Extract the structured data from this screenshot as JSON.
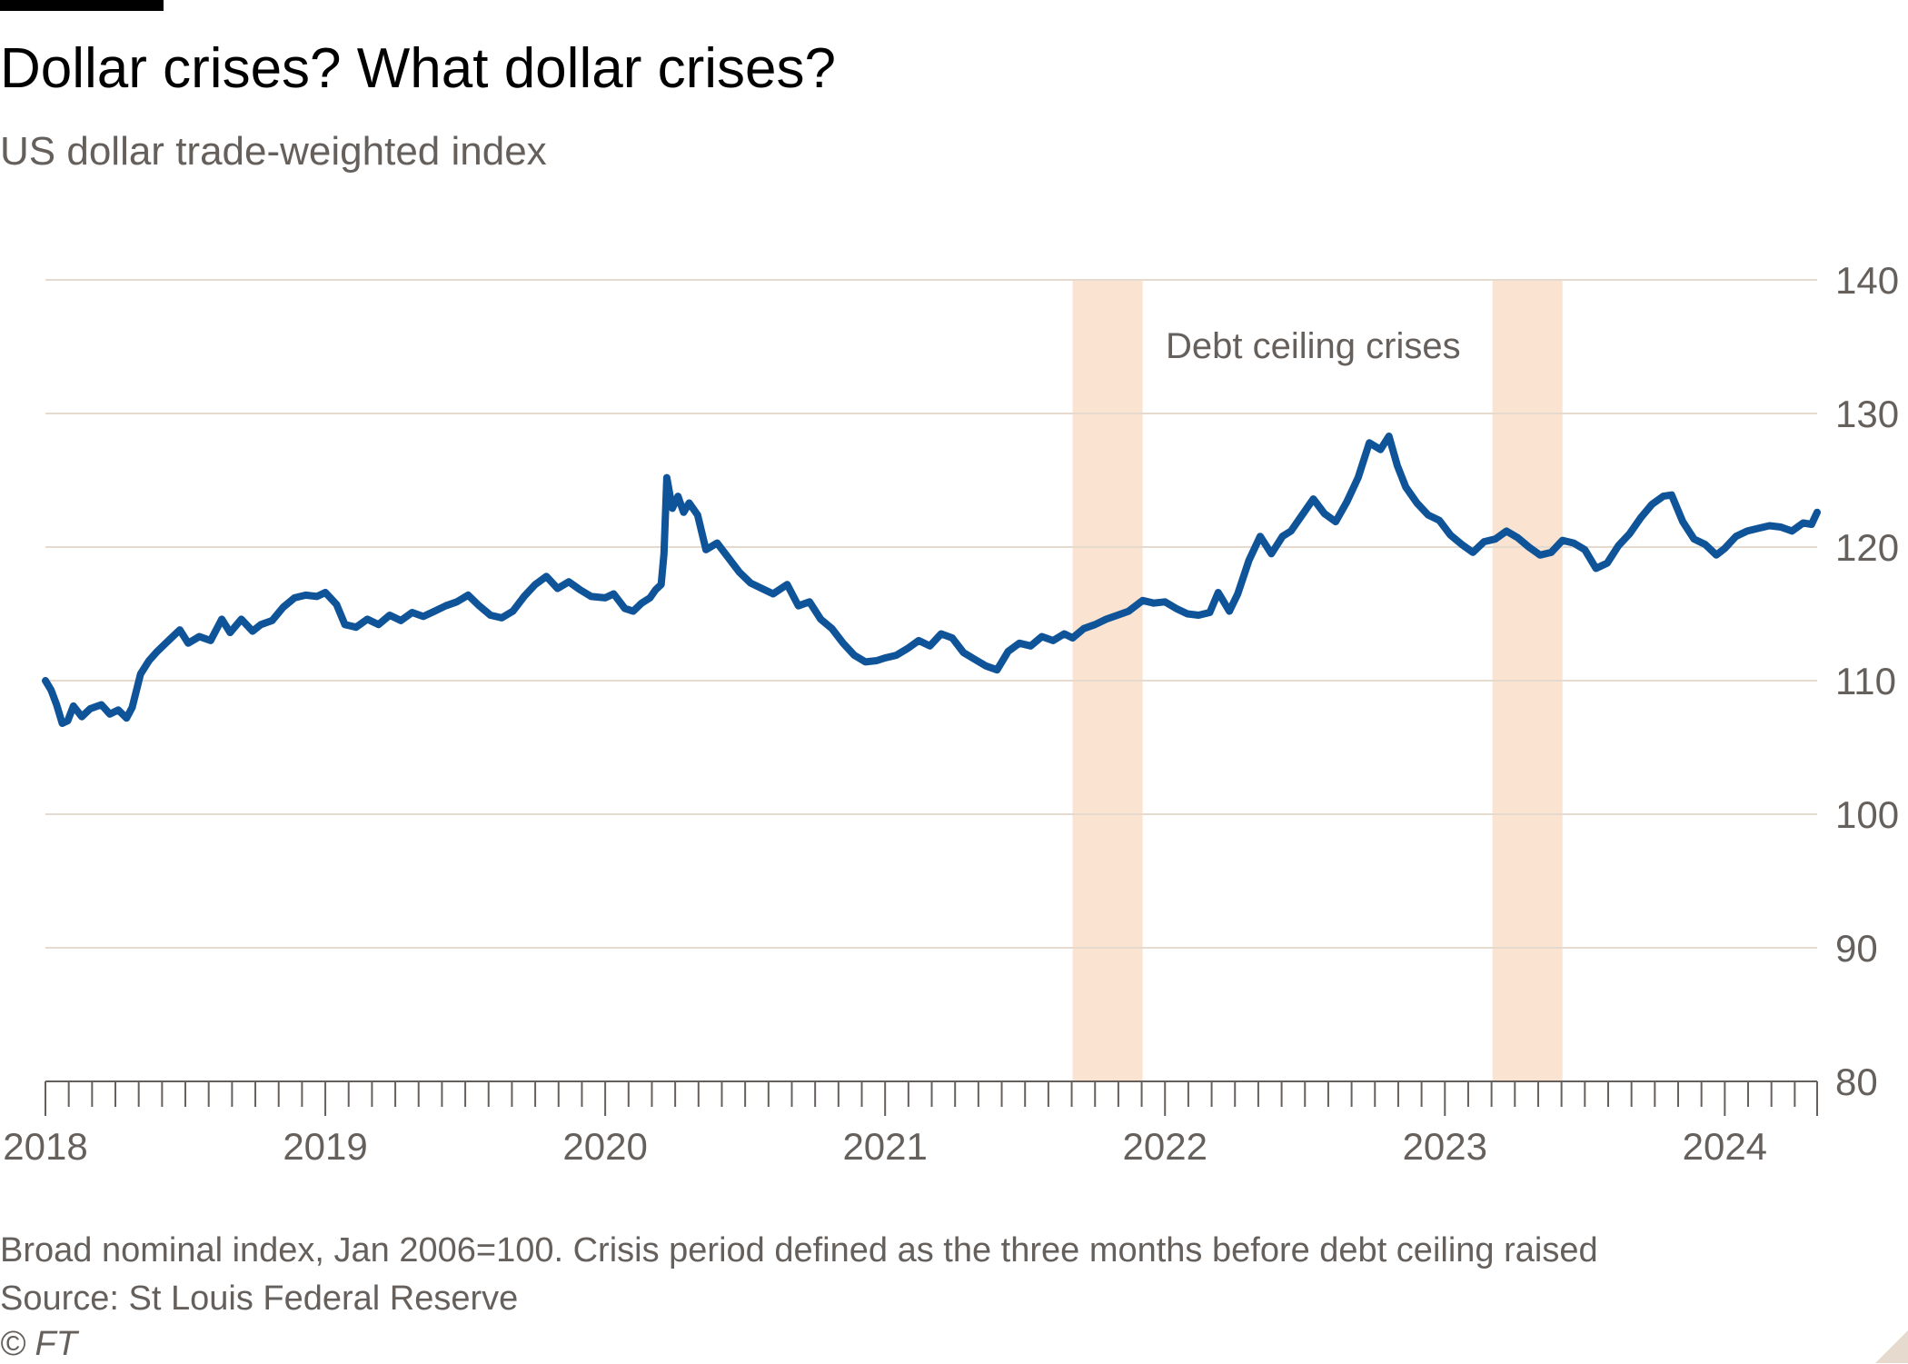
{
  "header": {
    "title": "Dollar crises? What dollar crises?",
    "subtitle": "US dollar trade-weighted index"
  },
  "footer": {
    "note": "Broad nominal index, Jan 2006=100. Crisis period defined as the three months before debt ceiling raised",
    "source": "Source: St Louis Federal Reserve",
    "copyright": "© FT"
  },
  "colors": {
    "line": "#0f5499",
    "shade": "#fbe3d1",
    "grid": "#e6d9ce",
    "text": "#66605c"
  },
  "chart_data": {
    "type": "line",
    "title": "Dollar crises? What dollar crises?",
    "subtitle": "US dollar trade-weighted index",
    "xlim": [
      2018.0,
      2024.33
    ],
    "ylim": [
      80,
      140
    ],
    "yticks": [
      80,
      90,
      100,
      110,
      120,
      130,
      140
    ],
    "xticks": [
      "2018",
      "2019",
      "2020",
      "2021",
      "2022",
      "2023",
      "2024"
    ],
    "y_axis_side": "right",
    "grid": true,
    "annotation": "Debt ceiling crises",
    "shaded_periods": [
      [
        2021.67,
        2021.92
      ],
      [
        2023.17,
        2023.42
      ]
    ],
    "series": [
      {
        "values": [
          [
            2018.0,
            110.0
          ],
          [
            2018.02,
            109.3
          ],
          [
            2018.04,
            108.2
          ],
          [
            2018.06,
            106.8
          ],
          [
            2018.08,
            107.0
          ],
          [
            2018.1,
            108.1
          ],
          [
            2018.13,
            107.3
          ],
          [
            2018.16,
            107.9
          ],
          [
            2018.2,
            108.2
          ],
          [
            2018.23,
            107.5
          ],
          [
            2018.26,
            107.8
          ],
          [
            2018.29,
            107.2
          ],
          [
            2018.31,
            108.0
          ],
          [
            2018.34,
            110.5
          ],
          [
            2018.37,
            111.5
          ],
          [
            2018.4,
            112.2
          ],
          [
            2018.44,
            113.0
          ],
          [
            2018.48,
            113.8
          ],
          [
            2018.51,
            112.8
          ],
          [
            2018.55,
            113.3
          ],
          [
            2018.59,
            113.0
          ],
          [
            2018.63,
            114.6
          ],
          [
            2018.66,
            113.6
          ],
          [
            2018.7,
            114.6
          ],
          [
            2018.74,
            113.7
          ],
          [
            2018.77,
            114.2
          ],
          [
            2018.81,
            114.5
          ],
          [
            2018.85,
            115.5
          ],
          [
            2018.89,
            116.2
          ],
          [
            2018.93,
            116.4
          ],
          [
            2018.97,
            116.3
          ],
          [
            2019.0,
            116.6
          ],
          [
            2019.04,
            115.7
          ],
          [
            2019.07,
            114.2
          ],
          [
            2019.11,
            114.0
          ],
          [
            2019.15,
            114.6
          ],
          [
            2019.19,
            114.2
          ],
          [
            2019.23,
            114.9
          ],
          [
            2019.27,
            114.5
          ],
          [
            2019.31,
            115.1
          ],
          [
            2019.35,
            114.8
          ],
          [
            2019.39,
            115.2
          ],
          [
            2019.43,
            115.6
          ],
          [
            2019.47,
            115.9
          ],
          [
            2019.51,
            116.4
          ],
          [
            2019.55,
            115.6
          ],
          [
            2019.59,
            114.9
          ],
          [
            2019.63,
            114.7
          ],
          [
            2019.67,
            115.2
          ],
          [
            2019.71,
            116.3
          ],
          [
            2019.75,
            117.2
          ],
          [
            2019.79,
            117.8
          ],
          [
            2019.83,
            116.9
          ],
          [
            2019.87,
            117.4
          ],
          [
            2019.91,
            116.8
          ],
          [
            2019.95,
            116.3
          ],
          [
            2020.0,
            116.2
          ],
          [
            2020.03,
            116.5
          ],
          [
            2020.07,
            115.4
          ],
          [
            2020.1,
            115.2
          ],
          [
            2020.13,
            115.8
          ],
          [
            2020.16,
            116.2
          ],
          [
            2020.18,
            116.8
          ],
          [
            2020.2,
            117.2
          ],
          [
            2020.21,
            119.5
          ],
          [
            2020.22,
            125.2
          ],
          [
            2020.24,
            122.9
          ],
          [
            2020.26,
            123.8
          ],
          [
            2020.28,
            122.6
          ],
          [
            2020.3,
            123.3
          ],
          [
            2020.33,
            122.4
          ],
          [
            2020.36,
            119.8
          ],
          [
            2020.4,
            120.3
          ],
          [
            2020.44,
            119.2
          ],
          [
            2020.48,
            118.1
          ],
          [
            2020.52,
            117.3
          ],
          [
            2020.56,
            116.9
          ],
          [
            2020.6,
            116.5
          ],
          [
            2020.65,
            117.2
          ],
          [
            2020.69,
            115.6
          ],
          [
            2020.73,
            115.9
          ],
          [
            2020.77,
            114.6
          ],
          [
            2020.81,
            113.9
          ],
          [
            2020.85,
            112.8
          ],
          [
            2020.89,
            111.9
          ],
          [
            2020.93,
            111.4
          ],
          [
            2020.97,
            111.5
          ],
          [
            2021.0,
            111.7
          ],
          [
            2021.04,
            111.9
          ],
          [
            2021.08,
            112.4
          ],
          [
            2021.12,
            113.0
          ],
          [
            2021.16,
            112.6
          ],
          [
            2021.2,
            113.5
          ],
          [
            2021.24,
            113.2
          ],
          [
            2021.28,
            112.1
          ],
          [
            2021.32,
            111.6
          ],
          [
            2021.36,
            111.1
          ],
          [
            2021.4,
            110.8
          ],
          [
            2021.44,
            112.2
          ],
          [
            2021.48,
            112.8
          ],
          [
            2021.52,
            112.6
          ],
          [
            2021.56,
            113.3
          ],
          [
            2021.6,
            113.0
          ],
          [
            2021.64,
            113.5
          ],
          [
            2021.67,
            113.2
          ],
          [
            2021.71,
            113.9
          ],
          [
            2021.75,
            114.2
          ],
          [
            2021.79,
            114.6
          ],
          [
            2021.83,
            114.9
          ],
          [
            2021.87,
            115.2
          ],
          [
            2021.92,
            116.0
          ],
          [
            2021.96,
            115.8
          ],
          [
            2022.0,
            115.9
          ],
          [
            2022.04,
            115.4
          ],
          [
            2022.08,
            115.0
          ],
          [
            2022.12,
            114.9
          ],
          [
            2022.16,
            115.1
          ],
          [
            2022.19,
            116.6
          ],
          [
            2022.23,
            115.2
          ],
          [
            2022.26,
            116.5
          ],
          [
            2022.3,
            119.0
          ],
          [
            2022.34,
            120.8
          ],
          [
            2022.38,
            119.5
          ],
          [
            2022.42,
            120.8
          ],
          [
            2022.45,
            121.2
          ],
          [
            2022.49,
            122.4
          ],
          [
            2022.53,
            123.6
          ],
          [
            2022.57,
            122.5
          ],
          [
            2022.61,
            121.9
          ],
          [
            2022.65,
            123.4
          ],
          [
            2022.69,
            125.2
          ],
          [
            2022.73,
            127.8
          ],
          [
            2022.77,
            127.3
          ],
          [
            2022.8,
            128.3
          ],
          [
            2022.83,
            126.1
          ],
          [
            2022.86,
            124.5
          ],
          [
            2022.9,
            123.3
          ],
          [
            2022.94,
            122.4
          ],
          [
            2022.98,
            122.0
          ],
          [
            2023.02,
            120.9
          ],
          [
            2023.06,
            120.2
          ],
          [
            2023.1,
            119.6
          ],
          [
            2023.14,
            120.4
          ],
          [
            2023.18,
            120.6
          ],
          [
            2023.22,
            121.2
          ],
          [
            2023.26,
            120.7
          ],
          [
            2023.3,
            120.0
          ],
          [
            2023.34,
            119.4
          ],
          [
            2023.38,
            119.6
          ],
          [
            2023.42,
            120.5
          ],
          [
            2023.46,
            120.3
          ],
          [
            2023.5,
            119.8
          ],
          [
            2023.54,
            118.4
          ],
          [
            2023.58,
            118.8
          ],
          [
            2023.62,
            120.1
          ],
          [
            2023.66,
            121.0
          ],
          [
            2023.7,
            122.2
          ],
          [
            2023.74,
            123.2
          ],
          [
            2023.78,
            123.8
          ],
          [
            2023.81,
            123.9
          ],
          [
            2023.85,
            121.9
          ],
          [
            2023.89,
            120.6
          ],
          [
            2023.93,
            120.2
          ],
          [
            2023.97,
            119.4
          ],
          [
            2024.0,
            119.9
          ],
          [
            2024.04,
            120.8
          ],
          [
            2024.08,
            121.2
          ],
          [
            2024.12,
            121.4
          ],
          [
            2024.16,
            121.6
          ],
          [
            2024.2,
            121.5
          ],
          [
            2024.24,
            121.2
          ],
          [
            2024.28,
            121.8
          ],
          [
            2024.31,
            121.7
          ],
          [
            2024.33,
            122.6
          ]
        ]
      }
    ]
  }
}
